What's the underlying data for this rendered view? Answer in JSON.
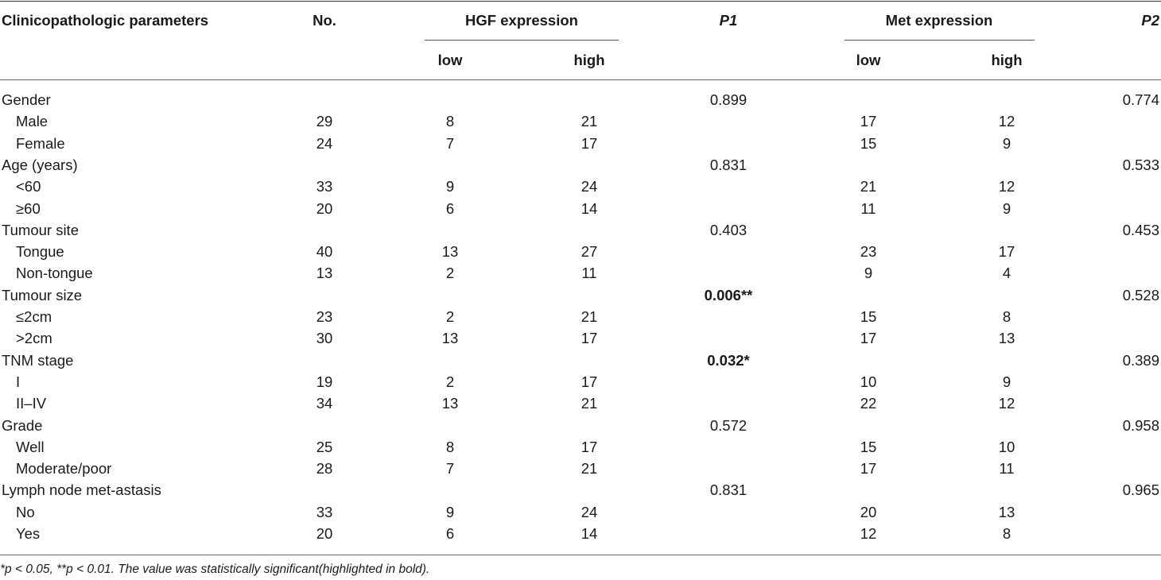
{
  "header": {
    "col_param": "Clinicopathologic parameters",
    "col_no": "No.",
    "hgf_group": "HGF expression",
    "p1": "P1",
    "met_group": "Met expression",
    "p2": "P2",
    "low": "low",
    "high": "high"
  },
  "rows": [
    {
      "label": "Gender",
      "indent": false,
      "no": "",
      "hgf_low": "",
      "hgf_high": "",
      "p1": "0.899",
      "p1_bold": false,
      "met_low": "",
      "met_high": "",
      "p2": "0.774"
    },
    {
      "label": "Male",
      "indent": true,
      "no": "29",
      "hgf_low": "8",
      "hgf_high": "21",
      "p1": "",
      "p1_bold": false,
      "met_low": "17",
      "met_high": "12",
      "p2": ""
    },
    {
      "label": "Female",
      "indent": true,
      "no": "24",
      "hgf_low": "7",
      "hgf_high": "17",
      "p1": "",
      "p1_bold": false,
      "met_low": "15",
      "met_high": "9",
      "p2": ""
    },
    {
      "label": "Age (years)",
      "indent": false,
      "no": "",
      "hgf_low": "",
      "hgf_high": "",
      "p1": "0.831",
      "p1_bold": false,
      "met_low": "",
      "met_high": "",
      "p2": "0.533"
    },
    {
      "label": "<60",
      "indent": true,
      "no": "33",
      "hgf_low": "9",
      "hgf_high": "24",
      "p1": "",
      "p1_bold": false,
      "met_low": "21",
      "met_high": "12",
      "p2": ""
    },
    {
      "label": "≥60",
      "indent": true,
      "no": "20",
      "hgf_low": "6",
      "hgf_high": "14",
      "p1": "",
      "p1_bold": false,
      "met_low": "11",
      "met_high": "9",
      "p2": ""
    },
    {
      "label": "Tumour site",
      "indent": false,
      "no": "",
      "hgf_low": "",
      "hgf_high": "",
      "p1": "0.403",
      "p1_bold": false,
      "met_low": "",
      "met_high": "",
      "p2": "0.453"
    },
    {
      "label": "Tongue",
      "indent": true,
      "no": "40",
      "hgf_low": "13",
      "hgf_high": "27",
      "p1": "",
      "p1_bold": false,
      "met_low": "23",
      "met_high": "17",
      "p2": ""
    },
    {
      "label": "Non-tongue",
      "indent": true,
      "no": "13",
      "hgf_low": "2",
      "hgf_high": "11",
      "p1": "",
      "p1_bold": false,
      "met_low": "9",
      "met_high": "4",
      "p2": ""
    },
    {
      "label": "Tumour size",
      "indent": false,
      "no": "",
      "hgf_low": "",
      "hgf_high": "",
      "p1": "0.006**",
      "p1_bold": true,
      "met_low": "",
      "met_high": "",
      "p2": "0.528"
    },
    {
      "label": "≤2cm",
      "indent": true,
      "no": "23",
      "hgf_low": "2",
      "hgf_high": "21",
      "p1": "",
      "p1_bold": false,
      "met_low": "15",
      "met_high": "8",
      "p2": ""
    },
    {
      "label": ">2cm",
      "indent": true,
      "no": "30",
      "hgf_low": "13",
      "hgf_high": "17",
      "p1": "",
      "p1_bold": false,
      "met_low": "17",
      "met_high": "13",
      "p2": ""
    },
    {
      "label": "TNM stage",
      "indent": false,
      "no": "",
      "hgf_low": "",
      "hgf_high": "",
      "p1": "0.032*",
      "p1_bold": true,
      "met_low": "",
      "met_high": "",
      "p2": "0.389"
    },
    {
      "label": "I",
      "indent": true,
      "no": "19",
      "hgf_low": "2",
      "hgf_high": "17",
      "p1": "",
      "p1_bold": false,
      "met_low": "10",
      "met_high": "9",
      "p2": ""
    },
    {
      "label": "II–IV",
      "indent": true,
      "no": "34",
      "hgf_low": "13",
      "hgf_high": "21",
      "p1": "",
      "p1_bold": false,
      "met_low": "22",
      "met_high": "12",
      "p2": ""
    },
    {
      "label": "Grade",
      "indent": false,
      "no": "",
      "hgf_low": "",
      "hgf_high": "",
      "p1": "0.572",
      "p1_bold": false,
      "met_low": "",
      "met_high": "",
      "p2": "0.958"
    },
    {
      "label": "Well",
      "indent": true,
      "no": "25",
      "hgf_low": "8",
      "hgf_high": "17",
      "p1": "",
      "p1_bold": false,
      "met_low": "15",
      "met_high": "10",
      "p2": ""
    },
    {
      "label": "Moderate/poor",
      "indent": true,
      "no": "28",
      "hgf_low": "7",
      "hgf_high": "21",
      "p1": "",
      "p1_bold": false,
      "met_low": "17",
      "met_high": "11",
      "p2": ""
    },
    {
      "label": "Lymph node met-astasis",
      "indent": false,
      "no": "",
      "hgf_low": "",
      "hgf_high": "",
      "p1": "0.831",
      "p1_bold": false,
      "met_low": "",
      "met_high": "",
      "p2": "0.965"
    },
    {
      "label": "No",
      "indent": true,
      "no": "33",
      "hgf_low": "9",
      "hgf_high": "24",
      "p1": "",
      "p1_bold": false,
      "met_low": "20",
      "met_high": "13",
      "p2": ""
    },
    {
      "label": "Yes",
      "indent": true,
      "no": "20",
      "hgf_low": "6",
      "hgf_high": "14",
      "p1": "",
      "p1_bold": false,
      "met_low": "12",
      "met_high": "8",
      "p2": ""
    }
  ],
  "footnote": "*p < 0.05, **p < 0.01. The value was statistically significant(highlighted in bold)."
}
